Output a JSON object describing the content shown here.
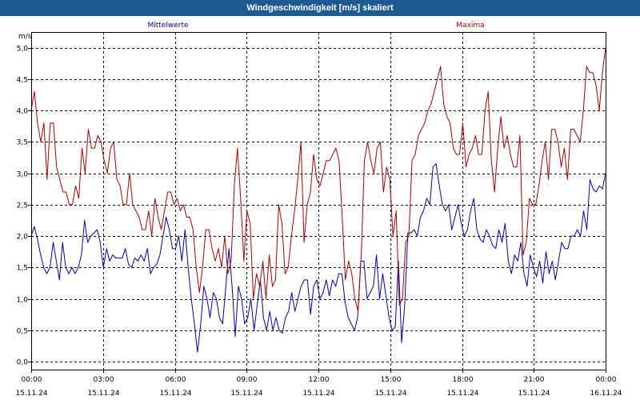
{
  "window": {
    "title": "Windgeschwindigkeit [m/s] skaliert"
  },
  "colors": {
    "titlebar": "#1d5a94",
    "mean": "#0000b4",
    "max": "#aa0000",
    "grid": "#000000"
  },
  "chart_data": {
    "type": "line",
    "ylabel": "m/s",
    "ylim": [
      0.0,
      5.0
    ],
    "yticks": [
      "5,0",
      "4,5",
      "4,0",
      "3,5",
      "3,0",
      "2,5",
      "2,0",
      "1,5",
      "1,0",
      "0,5",
      "0,0"
    ],
    "xlim_hours": [
      0,
      24
    ],
    "xticks": [
      {
        "time": "00:00",
        "date": "15.11.24"
      },
      {
        "time": "03:00",
        "date": "15.11.24"
      },
      {
        "time": "06:00",
        "date": "15.11.24"
      },
      {
        "time": "09:00",
        "date": "15.11.24"
      },
      {
        "time": "12:00",
        "date": "15.11.24"
      },
      {
        "time": "15:00",
        "date": "15.11.24"
      },
      {
        "time": "18:00",
        "date": "15.11.24"
      },
      {
        "time": "21:00",
        "date": "15.11.24"
      },
      {
        "time": "00:00",
        "date": "16.11.24"
      }
    ],
    "grid": true,
    "interval_minutes": 10,
    "series": [
      {
        "name": "Mittelwerte",
        "values": [
          2.0,
          2.15,
          1.95,
          1.7,
          1.5,
          1.4,
          1.5,
          1.9,
          1.6,
          1.3,
          1.9,
          1.5,
          1.4,
          1.5,
          1.4,
          1.5,
          1.7,
          2.25,
          1.9,
          2.0,
          2.05,
          2.1,
          1.9,
          1.5,
          1.8,
          1.6,
          1.7,
          1.65,
          1.65,
          1.65,
          1.8,
          1.55,
          1.5,
          1.65,
          1.6,
          1.7,
          1.6,
          1.8,
          1.4,
          1.5,
          1.55,
          1.7,
          2.0,
          2.3,
          2.1,
          1.8,
          1.8,
          2.0,
          1.6,
          2.1,
          1.5,
          1.0,
          0.6,
          0.15,
          0.6,
          1.2,
          1.0,
          0.7,
          1.1,
          1.0,
          0.7,
          0.6,
          1.2,
          1.8,
          1.2,
          0.4,
          1.2,
          1.0,
          0.6,
          0.7,
          1.0,
          0.5,
          0.9,
          1.3,
          0.7,
          0.5,
          0.8,
          0.5,
          0.7,
          0.5,
          0.45,
          0.7,
          0.8,
          1.1,
          0.8,
          1.0,
          1.2,
          1.3,
          1.3,
          0.75,
          1.2,
          1.3,
          1.0,
          1.1,
          1.3,
          1.05,
          1.3,
          1.2,
          1.4,
          1.4,
          0.95,
          0.7,
          0.6,
          0.5,
          0.7,
          1.6,
          1.6,
          1.0,
          1.1,
          1.2,
          1.7,
          1.0,
          1.4,
          1.05,
          0.7,
          0.5,
          0.55,
          1.6,
          0.3,
          0.9,
          2.05,
          2.05,
          2.1,
          2.0,
          2.3,
          2.4,
          2.6,
          2.5,
          3.1,
          3.15,
          2.8,
          2.5,
          2.4,
          2.5,
          2.1,
          2.3,
          2.5,
          2.2,
          2.0,
          2.1,
          2.4,
          2.6,
          2.1,
          1.95,
          1.9,
          2.1,
          2.0,
          1.85,
          1.8,
          2.1,
          1.9,
          2.2,
          1.6,
          1.4,
          1.7,
          1.6,
          1.9,
          1.4,
          1.2,
          1.7,
          1.5,
          1.35,
          1.6,
          1.25,
          1.75,
          1.4,
          1.6,
          1.3,
          1.6,
          1.9,
          1.8,
          1.8,
          2.0,
          2.0,
          2.1,
          2.0,
          2.4,
          2.1,
          2.9,
          2.75,
          2.7,
          2.8,
          2.75,
          3.0
        ]
      },
      {
        "name": "Maxima",
        "values": [
          4.0,
          4.3,
          3.8,
          3.5,
          3.8,
          2.9,
          3.8,
          3.8,
          3.1,
          2.9,
          2.7,
          2.7,
          2.5,
          2.5,
          2.8,
          2.6,
          3.4,
          3.0,
          3.7,
          3.4,
          3.4,
          3.6,
          3.5,
          3.2,
          3.0,
          3.4,
          3.5,
          2.9,
          2.8,
          2.5,
          2.5,
          3.0,
          2.5,
          2.4,
          2.3,
          2.1,
          2.1,
          2.4,
          2.0,
          2.6,
          2.3,
          2.1,
          2.4,
          2.7,
          2.7,
          2.5,
          2.6,
          2.4,
          2.5,
          2.3,
          2.3,
          2.1,
          1.5,
          1.1,
          1.5,
          2.1,
          2.1,
          1.8,
          1.6,
          1.8,
          1.5,
          2.0,
          1.4,
          1.6,
          2.8,
          3.4,
          2.6,
          1.6,
          2.4,
          2.2,
          1.0,
          1.4,
          1.2,
          1.6,
          1.0,
          1.7,
          1.2,
          1.3,
          2.5,
          2.2,
          1.4,
          1.5,
          2.0,
          2.4,
          2.9,
          3.5,
          1.9,
          2.5,
          2.7,
          3.3,
          2.9,
          2.8,
          3.0,
          3.2,
          3.2,
          3.3,
          3.4,
          3.2,
          2.3,
          1.3,
          1.6,
          1.4,
          1.0,
          0.8,
          1.7,
          3.2,
          3.5,
          3.2,
          3.0,
          3.4,
          3.5,
          2.7,
          3.1,
          2.9,
          2.0,
          2.4,
          0.9,
          1.0,
          1.9,
          2.0,
          3.2,
          3.3,
          3.6,
          3.7,
          3.8,
          4.0,
          4.1,
          4.3,
          4.5,
          4.7,
          4.1,
          3.9,
          3.8,
          3.4,
          3.3,
          3.3,
          3.8,
          3.1,
          3.3,
          3.4,
          3.6,
          3.3,
          3.3,
          4.0,
          4.3,
          3.2,
          2.7,
          3.4,
          3.9,
          3.4,
          3.6,
          3.3,
          3.1,
          3.1,
          3.6,
          1.7,
          1.9,
          2.6,
          2.5,
          2.5,
          2.8,
          3.2,
          3.5,
          2.9,
          3.7,
          3.7,
          3.5,
          3.1,
          3.4,
          2.9,
          3.7,
          3.7,
          3.6,
          3.5,
          4.0,
          4.7,
          4.6,
          4.6,
          4.4,
          4.0,
          4.6,
          5.0
        ]
      }
    ]
  }
}
